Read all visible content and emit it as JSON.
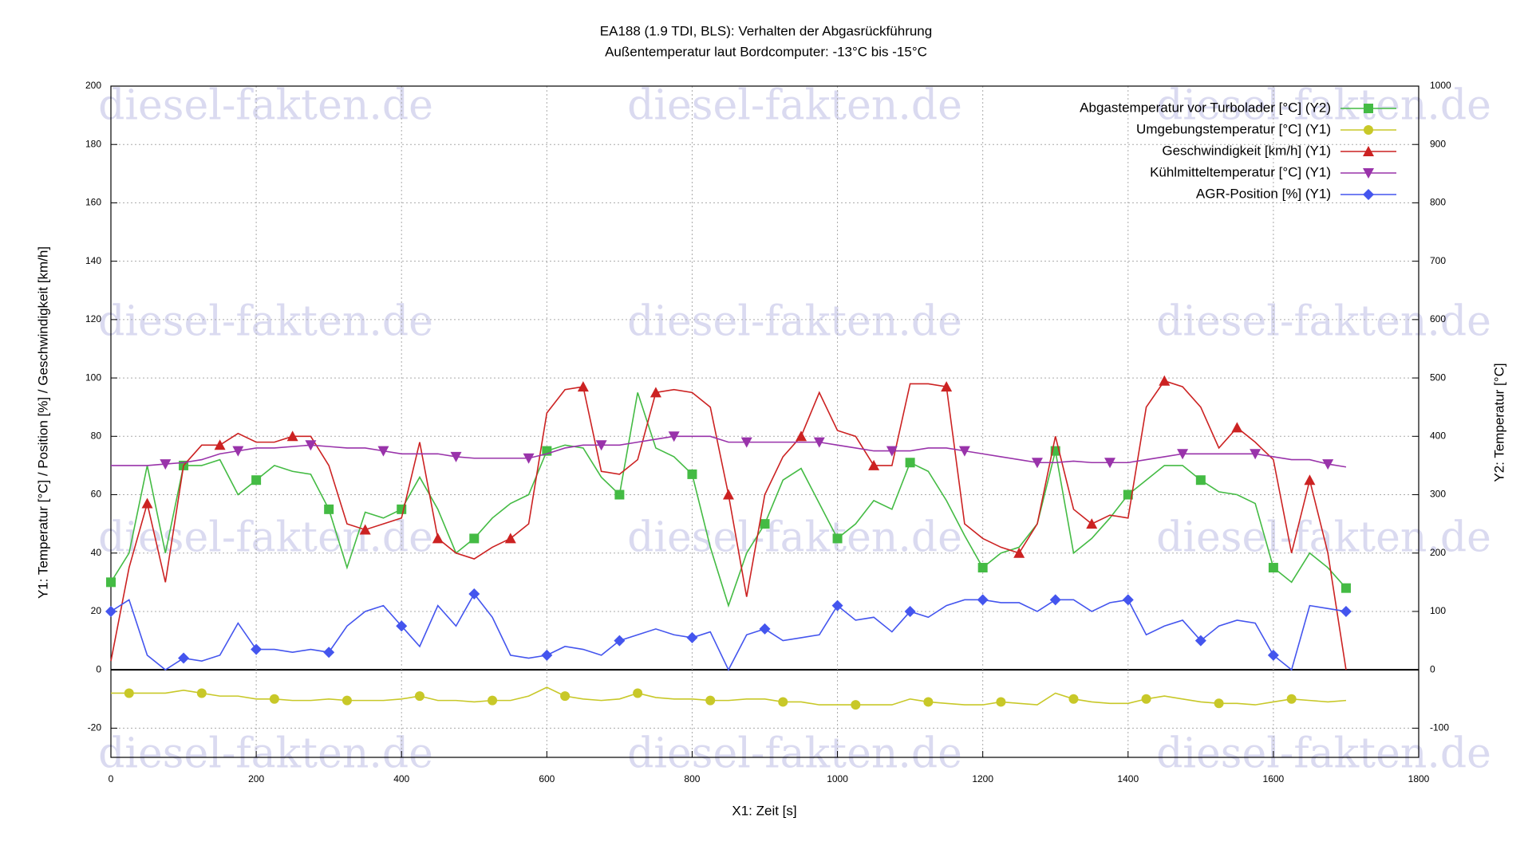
{
  "chart_data": {
    "type": "line",
    "title": "EA188 (1.9 TDI, BLS): Verhalten der Abgasrückführung",
    "subtitle": "Außentemperatur laut Bordcomputer: -13°C bis -15°C",
    "xlabel": "X1: Zeit [s]",
    "ylabel": "Y1: Temperatur [°C] / Position [%] / Geschwindigkeit [km/h]",
    "y2label": "Y2: Temperatur [°C]",
    "watermark": "diesel-fakten.de",
    "grid": true,
    "legend": "upper right",
    "xlim": [
      0,
      1800
    ],
    "xticks": [
      0,
      200,
      400,
      600,
      800,
      1000,
      1200,
      1400,
      1600,
      1800
    ],
    "ylim": [
      -30,
      200
    ],
    "yticks": [
      -20,
      0,
      20,
      40,
      60,
      80,
      100,
      120,
      140,
      160,
      180,
      200
    ],
    "y2lim": [
      -150,
      1000
    ],
    "y2ticks": [
      -100,
      0,
      100,
      200,
      300,
      400,
      500,
      600,
      700,
      800,
      900,
      1000
    ],
    "x": [
      0,
      25,
      50,
      75,
      100,
      125,
      150,
      175,
      200,
      225,
      250,
      275,
      300,
      325,
      350,
      375,
      400,
      425,
      450,
      475,
      500,
      525,
      550,
      575,
      600,
      625,
      650,
      675,
      700,
      725,
      750,
      775,
      800,
      825,
      850,
      875,
      900,
      925,
      950,
      975,
      1000,
      1025,
      1050,
      1075,
      1100,
      1125,
      1150,
      1175,
      1200,
      1225,
      1250,
      1275,
      1300,
      1325,
      1350,
      1375,
      1400,
      1425,
      1450,
      1475,
      1500,
      1525,
      1550,
      1575,
      1600,
      1625,
      1650,
      1675,
      1700
    ],
    "series": [
      {
        "name": "Abgastemperatur vor Turbolader [°C] (Y2)",
        "color": "#44bb44",
        "marker": "square",
        "axis": "y2",
        "values": [
          150,
          200,
          350,
          200,
          350,
          350,
          360,
          300,
          325,
          350,
          340,
          335,
          275,
          175,
          270,
          260,
          275,
          330,
          275,
          200,
          225,
          260,
          285,
          300,
          375,
          385,
          380,
          330,
          300,
          475,
          380,
          365,
          335,
          210,
          110,
          200,
          250,
          325,
          345,
          285,
          225,
          250,
          290,
          275,
          355,
          340,
          290,
          230,
          175,
          200,
          210,
          250,
          375,
          200,
          225,
          260,
          300,
          325,
          350,
          350,
          325,
          305,
          300,
          285,
          175,
          150,
          200,
          175,
          140
        ]
      },
      {
        "name": "Umgebungstemperatur [°C] (Y1)",
        "color": "#c8c828",
        "marker": "circle",
        "axis": "y",
        "values": [
          -8,
          -8,
          -8,
          -8,
          -7,
          -8,
          -9,
          -9,
          -10,
          -10,
          -10.5,
          -10.5,
          -10,
          -10.5,
          -10.5,
          -10.5,
          -10,
          -9,
          -10.5,
          -10.5,
          -11,
          -10.5,
          -10.5,
          -9,
          -6,
          -9,
          -10,
          -10.5,
          -10,
          -8,
          -9.5,
          -10,
          -10,
          -10.5,
          -10.5,
          -10,
          -10,
          -11,
          -11,
          -12,
          -12,
          -12,
          -12,
          -12,
          -10,
          -11,
          -11.5,
          -12,
          -12,
          -11,
          -11.5,
          -12,
          -8,
          -10,
          -11,
          -11.5,
          -11.5,
          -10,
          -9,
          -10,
          -11,
          -11.5,
          -11.5,
          -12,
          -11,
          -10,
          -10.5,
          -11,
          -10.5
        ]
      },
      {
        "name": "Geschwindigkeit [km/h] (Y1)",
        "color": "#cc2222",
        "marker": "triangle-up",
        "axis": "y",
        "values": [
          3,
          35,
          57,
          30,
          70,
          77,
          77,
          81,
          78,
          78,
          80,
          80,
          70,
          50,
          48,
          50,
          52,
          78,
          45,
          40,
          38,
          42,
          45,
          50,
          88,
          96,
          97,
          68,
          67,
          72,
          95,
          96,
          95,
          90,
          60,
          25,
          60,
          73,
          80,
          95,
          82,
          80,
          70,
          70,
          98,
          98,
          97,
          50,
          45,
          42,
          40,
          50,
          80,
          55,
          50,
          53,
          52,
          90,
          99,
          97,
          90,
          76,
          83,
          78,
          72,
          40,
          65,
          40,
          0
        ]
      },
      {
        "name": "Kühlmitteltemperatur [°C] (Y1)",
        "color": "#9933aa",
        "marker": "triangle-down",
        "axis": "y",
        "values": [
          70,
          70,
          70,
          70.5,
          71,
          72,
          74,
          75,
          76,
          76,
          76.5,
          77,
          76.5,
          76,
          76,
          75,
          74,
          74,
          74,
          73,
          72.5,
          72.5,
          72.5,
          72.5,
          74,
          76,
          77,
          77,
          77,
          78,
          79,
          80,
          80,
          80,
          78,
          78,
          78,
          78,
          78,
          78,
          77,
          76,
          75,
          75,
          75,
          76,
          76,
          75,
          74,
          73,
          72,
          71,
          71,
          71.5,
          71,
          71,
          71,
          72,
          73,
          74,
          74,
          74,
          74,
          74,
          73,
          72,
          72,
          70.5,
          69.5
        ]
      },
      {
        "name": "AGR-Position [%] (Y1)",
        "color": "#4455ee",
        "marker": "diamond",
        "axis": "y",
        "values": [
          20,
          24,
          5,
          0,
          4,
          3,
          5,
          16,
          7,
          7,
          6,
          7,
          6,
          15,
          20,
          22,
          15,
          8,
          22,
          15,
          26,
          18,
          5,
          4,
          5,
          8,
          7,
          5,
          10,
          12,
          14,
          12,
          11,
          13,
          0,
          12,
          14,
          10,
          11,
          12,
          22,
          17,
          18,
          13,
          20,
          18,
          22,
          24,
          24,
          23,
          23,
          20,
          24,
          24,
          20,
          23,
          24,
          12,
          15,
          17,
          10,
          15,
          17,
          16,
          5,
          0,
          22,
          21,
          20
        ]
      }
    ]
  }
}
